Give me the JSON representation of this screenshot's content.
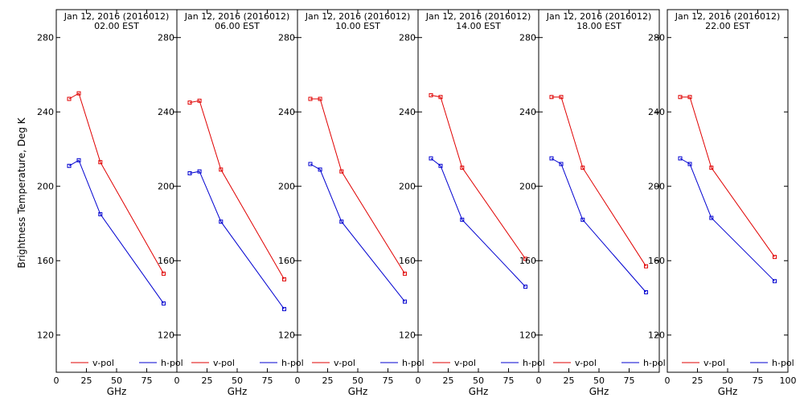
{
  "figure": {
    "ylabel": "Brightness Temperature, Deg K",
    "xlabel": "GHz",
    "colors": {
      "v_pol": "#e00000",
      "h_pol": "#0000d0"
    }
  },
  "chart_data": [
    {
      "type": "line",
      "title": [
        "Jan 12, 2016 (2016012)",
        "02.00 EST"
      ],
      "x": [
        10.65,
        18.7,
        36.5,
        89.0
      ],
      "xlim": [
        0,
        100
      ],
      "xticks": [
        0,
        25,
        50,
        75
      ],
      "xticklabels": [
        "0",
        "25",
        "50",
        "75"
      ],
      "ylim": [
        100,
        295
      ],
      "yticks": [
        120,
        160,
        200,
        240,
        280
      ],
      "yticklabels": [
        "120",
        "160",
        "200",
        "240",
        "280"
      ],
      "xlabel": "GHz",
      "ylabel": "Brightness Temperature, Deg K",
      "legend_position": "bottom",
      "series": [
        {
          "name": "v-pol",
          "color": "#e00000",
          "values": [
            247,
            250,
            213,
            153
          ]
        },
        {
          "name": "h-pol",
          "color": "#0000d0",
          "values": [
            211,
            214,
            185,
            137
          ]
        }
      ]
    },
    {
      "type": "line",
      "title": [
        "Jan 12, 2016 (2016012)",
        "06.00 EST"
      ],
      "x": [
        10.65,
        18.7,
        36.5,
        89.0
      ],
      "xlim": [
        0,
        100
      ],
      "xticks": [
        0,
        25,
        50,
        75
      ],
      "xticklabels": [
        "0",
        "25",
        "50",
        "75"
      ],
      "ylim": [
        100,
        295
      ],
      "yticks": [
        120,
        160,
        200,
        240,
        280
      ],
      "yticklabels": [
        "120",
        "160",
        "200",
        "240",
        "280"
      ],
      "xlabel": "GHz",
      "legend_position": "bottom",
      "series": [
        {
          "name": "v-pol",
          "color": "#e00000",
          "values": [
            245,
            246,
            209,
            150
          ]
        },
        {
          "name": "h-pol",
          "color": "#0000d0",
          "values": [
            207,
            208,
            181,
            134
          ]
        }
      ]
    },
    {
      "type": "line",
      "title": [
        "Jan 12, 2016 (2016012)",
        "10.00 EST"
      ],
      "x": [
        10.65,
        18.7,
        36.5,
        89.0
      ],
      "xlim": [
        0,
        100
      ],
      "xticks": [
        0,
        25,
        50,
        75
      ],
      "xticklabels": [
        "0",
        "25",
        "50",
        "75"
      ],
      "ylim": [
        100,
        295
      ],
      "yticks": [
        120,
        160,
        200,
        240,
        280
      ],
      "yticklabels": [
        "120",
        "160",
        "200",
        "240",
        "280"
      ],
      "xlabel": "GHz",
      "legend_position": "bottom",
      "series": [
        {
          "name": "v-pol",
          "color": "#e00000",
          "values": [
            247,
            247,
            208,
            153
          ]
        },
        {
          "name": "h-pol",
          "color": "#0000d0",
          "values": [
            212,
            209,
            181,
            138
          ]
        }
      ]
    },
    {
      "type": "line",
      "title": [
        "Jan 12, 2016 (2016012)",
        "14.00 EST"
      ],
      "x": [
        10.65,
        18.7,
        36.5,
        89.0
      ],
      "xlim": [
        0,
        100
      ],
      "xticks": [
        0,
        25,
        50,
        75
      ],
      "xticklabels": [
        "0",
        "25",
        "50",
        "75"
      ],
      "ylim": [
        100,
        295
      ],
      "yticks": [
        120,
        160,
        200,
        240,
        280
      ],
      "yticklabels": [
        "120",
        "160",
        "200",
        "240",
        "280"
      ],
      "xlabel": "GHz",
      "legend_position": "bottom",
      "series": [
        {
          "name": "v-pol",
          "color": "#e00000",
          "values": [
            249,
            248,
            210,
            161
          ]
        },
        {
          "name": "h-pol",
          "color": "#0000d0",
          "values": [
            215,
            211,
            182,
            146
          ]
        }
      ]
    },
    {
      "type": "line",
      "title": [
        "Jan 12, 2016 (2016012)",
        "18.00 EST"
      ],
      "x": [
        10.65,
        18.7,
        36.5,
        89.0
      ],
      "xlim": [
        0,
        100
      ],
      "xticks": [
        0,
        25,
        50,
        75
      ],
      "xticklabels": [
        "0",
        "25",
        "50",
        "75"
      ],
      "ylim": [
        100,
        295
      ],
      "yticks": [
        120,
        160,
        200,
        240,
        280
      ],
      "yticklabels": [
        "120",
        "160",
        "200",
        "240",
        "280"
      ],
      "xlabel": "GHz",
      "legend_position": "bottom",
      "series": [
        {
          "name": "v-pol",
          "color": "#e00000",
          "values": [
            248,
            248,
            210,
            157
          ]
        },
        {
          "name": "h-pol",
          "color": "#0000d0",
          "values": [
            215,
            212,
            182,
            143
          ]
        }
      ]
    },
    {
      "type": "line",
      "title": [
        "Jan 12, 2016 (2016012)",
        "22.00 EST"
      ],
      "x": [
        10.65,
        18.7,
        36.5,
        89.0
      ],
      "xlim": [
        0,
        100
      ],
      "xticks": [
        0,
        25,
        50,
        75,
        100
      ],
      "xticklabels": [
        "0",
        "25",
        "50",
        "75",
        "100"
      ],
      "ylim": [
        100,
        295
      ],
      "yticks": [
        120,
        160,
        200,
        240,
        280
      ],
      "yticklabels": [
        "120",
        "160",
        "200",
        "240",
        "280"
      ],
      "xlabel": "GHz",
      "legend_position": "bottom",
      "series": [
        {
          "name": "v-pol",
          "color": "#e00000",
          "values": [
            248,
            248,
            210,
            162
          ]
        },
        {
          "name": "h-pol",
          "color": "#0000d0",
          "values": [
            215,
            212,
            183,
            149
          ]
        }
      ]
    }
  ]
}
